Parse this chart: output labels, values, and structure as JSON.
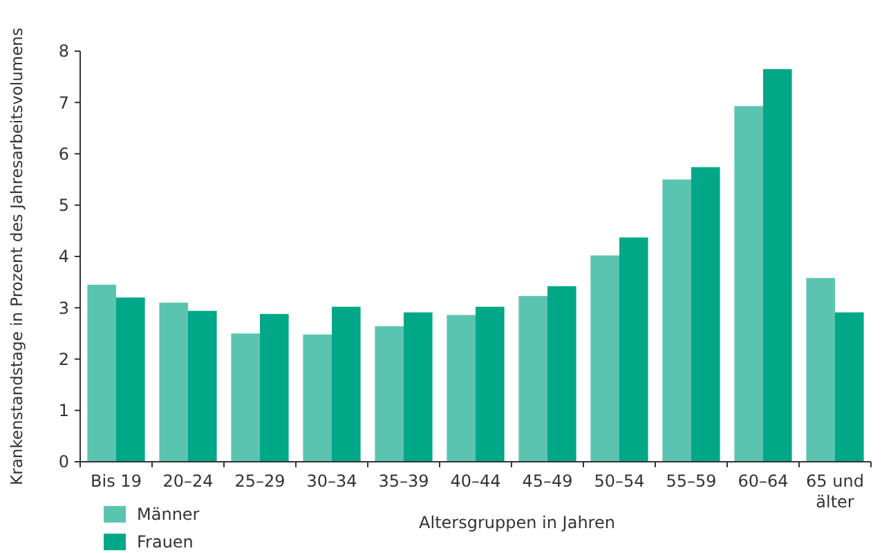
{
  "chart_data": {
    "type": "bar",
    "xlabel": "Altersgruppen in Jahren",
    "ylabel": "Krankenstandstage in Prozent des Jahresarbeitsvolumens",
    "categories": [
      "Bis 19",
      "20–24",
      "25–29",
      "30–34",
      "35–39",
      "40–44",
      "45–49",
      "50–54",
      "55–59",
      "60–64",
      "65 und älter"
    ],
    "series": [
      {
        "name": "Männer",
        "color": "#5bc4b1",
        "values": [
          3.45,
          3.1,
          2.5,
          2.48,
          2.64,
          2.86,
          3.23,
          4.02,
          5.5,
          6.93,
          3.58
        ]
      },
      {
        "name": "Frauen",
        "color": "#00a887",
        "values": [
          3.2,
          2.94,
          2.88,
          3.02,
          2.91,
          3.02,
          3.42,
          4.37,
          5.74,
          7.65,
          2.91
        ]
      }
    ],
    "ylim": [
      0,
      8
    ],
    "yticks": [
      0,
      1,
      2,
      3,
      4,
      5,
      6,
      7,
      8
    ],
    "grid": false,
    "legend": "bottom left"
  }
}
